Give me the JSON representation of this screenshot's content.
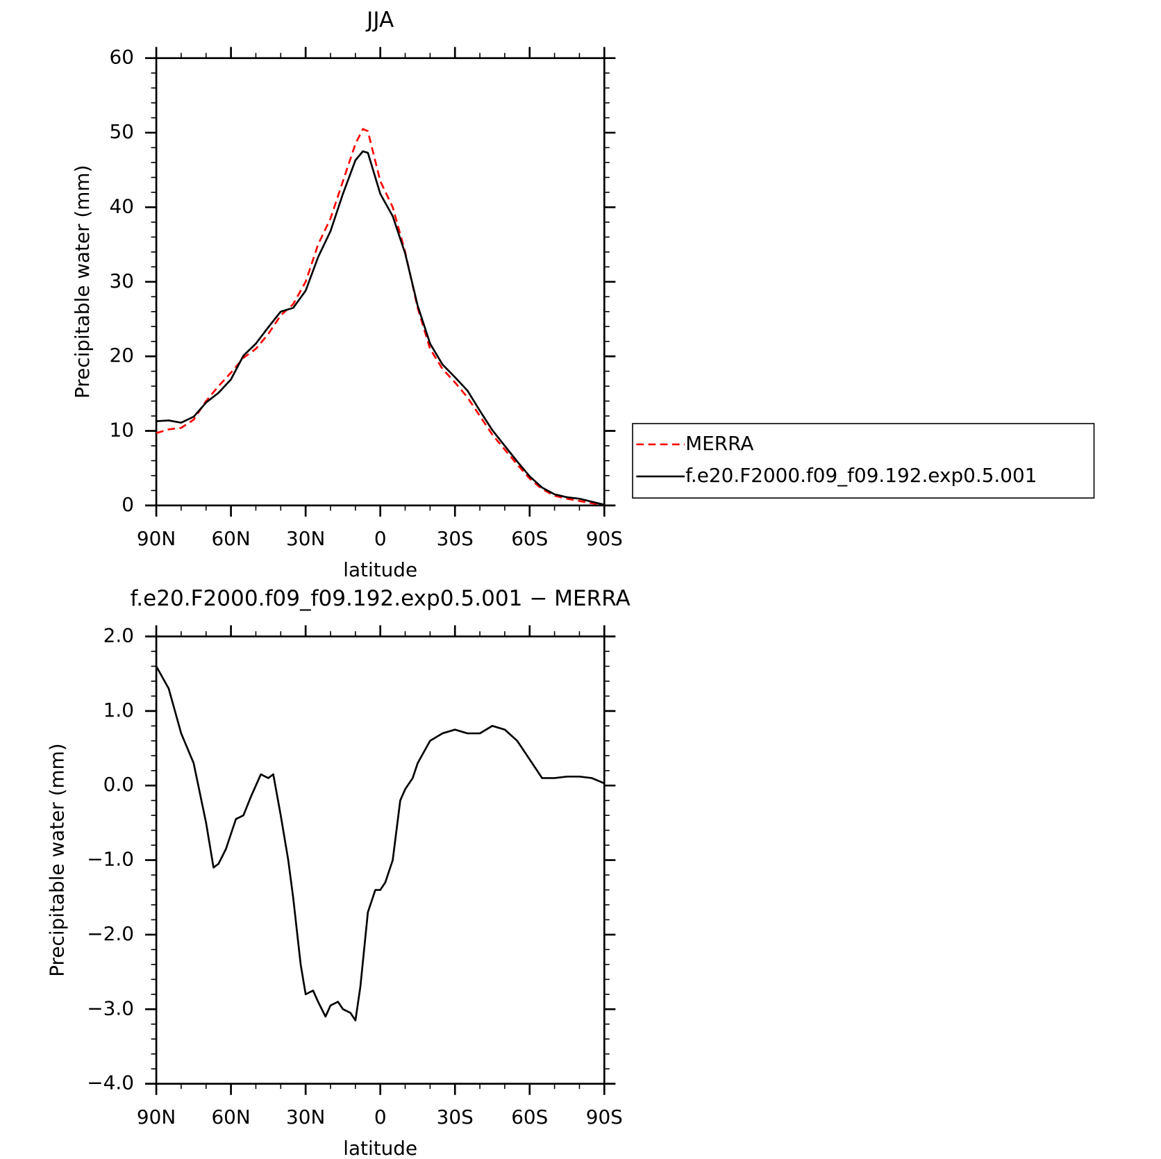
{
  "chart_data": [
    {
      "type": "line",
      "title": "JJA",
      "xlabel": "latitude",
      "ylabel": "Precipitable water (mm)",
      "x": [
        90,
        85,
        80,
        75,
        70,
        65,
        60,
        55,
        50,
        45,
        40,
        35,
        30,
        25,
        20,
        15,
        10,
        7,
        5,
        0,
        -5,
        -10,
        -15,
        -20,
        -25,
        -30,
        -35,
        -40,
        -45,
        -50,
        -55,
        -60,
        -65,
        -70,
        -75,
        -80,
        -85,
        -90
      ],
      "series": [
        {
          "name": "MERRA",
          "color": "#ff0000",
          "dashed": true,
          "values": [
            9.7,
            10.2,
            10.4,
            11.5,
            14.0,
            16.0,
            17.8,
            19.8,
            21.0,
            23.0,
            25.5,
            27.0,
            30.0,
            35.0,
            38.5,
            43.5,
            48.5,
            50.5,
            50.2,
            43.5,
            40.0,
            34.0,
            26.5,
            21.0,
            18.3,
            16.5,
            14.5,
            12.0,
            9.5,
            7.5,
            5.5,
            3.6,
            2.2,
            1.3,
            0.9,
            0.6,
            0.3,
            0.1
          ]
        },
        {
          "name": "f.e20.F2000.f09_f09.192.exp0.5.001",
          "color": "#000000",
          "dashed": false,
          "values": [
            11.3,
            11.4,
            11.1,
            11.9,
            13.8,
            15.1,
            16.9,
            20.1,
            21.7,
            23.9,
            26.0,
            26.5,
            28.8,
            33.3,
            36.8,
            41.8,
            46.3,
            47.5,
            47.3,
            41.8,
            38.8,
            33.8,
            26.8,
            21.7,
            18.9,
            17.2,
            15.4,
            12.7,
            10.1,
            8.0,
            5.9,
            3.9,
            2.4,
            1.5,
            1.1,
            0.9,
            0.5,
            0.1
          ]
        }
      ],
      "xlim": [
        90,
        -90
      ],
      "xticks": [
        {
          "value": 90,
          "label": "90N"
        },
        {
          "value": 60,
          "label": "60N"
        },
        {
          "value": 30,
          "label": "30N"
        },
        0,
        {
          "value": -30,
          "label": "30S"
        },
        {
          "value": -60,
          "label": "60S"
        },
        {
          "value": -90,
          "label": "90S"
        }
      ],
      "ylim": [
        0,
        60
      ],
      "yticks": [
        0,
        10,
        20,
        30,
        40,
        50,
        60
      ],
      "grid": false,
      "legend": "right"
    },
    {
      "type": "line",
      "title": "f.e20.F2000.f09_f09.192.exp0.5.001 − MERRA",
      "xlabel": "latitude",
      "ylabel": "Precipitable water (mm)",
      "x": [
        90,
        85,
        80,
        75,
        70,
        67,
        65,
        62,
        58,
        55,
        52,
        48,
        45,
        43,
        40,
        37,
        35,
        32,
        30,
        27,
        25,
        22,
        20,
        17,
        15,
        12,
        10,
        8,
        5,
        2,
        0,
        -2,
        -5,
        -8,
        -10,
        -13,
        -15,
        -20,
        -25,
        -30,
        -35,
        -40,
        -45,
        -50,
        -55,
        -60,
        -65,
        -70,
        -75,
        -80,
        -85,
        -90
      ],
      "color": "#000000",
      "values": [
        1.6,
        1.3,
        0.7,
        0.3,
        -0.5,
        -1.1,
        -1.05,
        -0.85,
        -0.45,
        -0.4,
        -0.15,
        0.15,
        0.1,
        0.15,
        -0.4,
        -1.0,
        -1.5,
        -2.4,
        -2.8,
        -2.75,
        -2.9,
        -3.1,
        -2.95,
        -2.9,
        -3.0,
        -3.05,
        -3.15,
        -2.7,
        -1.7,
        -1.4,
        -1.4,
        -1.3,
        -1.0,
        -0.2,
        -0.05,
        0.1,
        0.3,
        0.6,
        0.7,
        0.75,
        0.7,
        0.7,
        0.8,
        0.75,
        0.6,
        0.35,
        0.1,
        0.1,
        0.12,
        0.12,
        0.1,
        0.03
      ],
      "xlim": [
        90,
        -90
      ],
      "xticks": [
        {
          "value": 90,
          "label": "90N"
        },
        {
          "value": 60,
          "label": "60N"
        },
        {
          "value": 30,
          "label": "30N"
        },
        0,
        {
          "value": -30,
          "label": "30S"
        },
        {
          "value": -60,
          "label": "60S"
        },
        {
          "value": -90,
          "label": "90S"
        }
      ],
      "ylim": [
        -4,
        2
      ],
      "yticks": [
        {
          "value": -4,
          "label": "−4.0"
        },
        {
          "value": -3,
          "label": "−3.0"
        },
        {
          "value": -2,
          "label": "−2.0"
        },
        {
          "value": -1,
          "label": "−1.0"
        },
        {
          "value": 0,
          "label": "0.0"
        },
        {
          "value": 1,
          "label": "1.0"
        },
        {
          "value": 2,
          "label": "2.0"
        }
      ],
      "grid": false
    }
  ]
}
